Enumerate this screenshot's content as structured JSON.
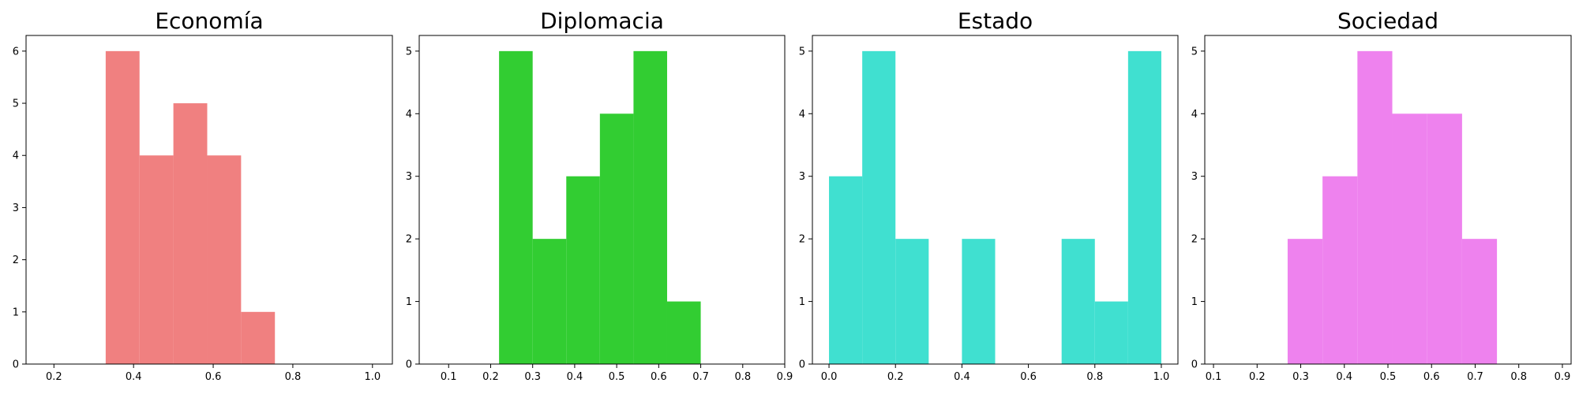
{
  "chart_data": [
    {
      "type": "bar",
      "title": "Economía",
      "color": "#f08080",
      "xlim": [
        0.13,
        1.05
      ],
      "ylim": [
        0,
        6.3
      ],
      "xticks": [
        "0.2",
        "0.4",
        "0.6",
        "0.8",
        "1.0"
      ],
      "yticks": [
        "0",
        "1",
        "2",
        "3",
        "4",
        "5",
        "6"
      ],
      "bins": [
        {
          "x0": 0.33,
          "x1": 0.415,
          "count": 6
        },
        {
          "x0": 0.415,
          "x1": 0.5,
          "count": 4
        },
        {
          "x0": 0.5,
          "x1": 0.585,
          "count": 5
        },
        {
          "x0": 0.585,
          "x1": 0.67,
          "count": 4
        },
        {
          "x0": 0.67,
          "x1": 0.755,
          "count": 1
        }
      ]
    },
    {
      "type": "bar",
      "title": "Diplomacia",
      "color": "#32cd32",
      "xlim": [
        0.03,
        0.9
      ],
      "ylim": [
        0,
        5.25
      ],
      "xticks": [
        "0.1",
        "0.2",
        "0.3",
        "0.4",
        "0.5",
        "0.6",
        "0.7",
        "0.8",
        "0.9"
      ],
      "yticks": [
        "0",
        "1",
        "2",
        "3",
        "4",
        "5"
      ],
      "bins": [
        {
          "x0": 0.22,
          "x1": 0.3,
          "count": 5
        },
        {
          "x0": 0.3,
          "x1": 0.38,
          "count": 2
        },
        {
          "x0": 0.38,
          "x1": 0.46,
          "count": 3
        },
        {
          "x0": 0.46,
          "x1": 0.54,
          "count": 4
        },
        {
          "x0": 0.54,
          "x1": 0.62,
          "count": 5
        },
        {
          "x0": 0.62,
          "x1": 0.7,
          "count": 1
        }
      ]
    },
    {
      "type": "bar",
      "title": "Estado",
      "color": "#40e0d0",
      "xlim": [
        -0.05,
        1.05
      ],
      "ylim": [
        0,
        5.25
      ],
      "xticks": [
        "0.0",
        "0.2",
        "0.4",
        "0.6",
        "0.8",
        "1.0"
      ],
      "yticks": [
        "0",
        "1",
        "2",
        "3",
        "4",
        "5"
      ],
      "bins": [
        {
          "x0": 0.0,
          "x1": 0.1,
          "count": 3
        },
        {
          "x0": 0.1,
          "x1": 0.2,
          "count": 5
        },
        {
          "x0": 0.2,
          "x1": 0.3,
          "count": 2
        },
        {
          "x0": 0.4,
          "x1": 0.5,
          "count": 2
        },
        {
          "x0": 0.7,
          "x1": 0.8,
          "count": 2
        },
        {
          "x0": 0.8,
          "x1": 0.9,
          "count": 1
        },
        {
          "x0": 0.9,
          "x1": 1.0,
          "count": 5
        }
      ]
    },
    {
      "type": "bar",
      "title": "Sociedad",
      "color": "#ee82ee",
      "xlim": [
        0.08,
        0.92
      ],
      "ylim": [
        0,
        5.25
      ],
      "xticks": [
        "0.1",
        "0.2",
        "0.3",
        "0.4",
        "0.5",
        "0.6",
        "0.7",
        "0.8",
        "0.9"
      ],
      "yticks": [
        "0",
        "1",
        "2",
        "3",
        "4",
        "5"
      ],
      "bins": [
        {
          "x0": 0.27,
          "x1": 0.35,
          "count": 2
        },
        {
          "x0": 0.35,
          "x1": 0.43,
          "count": 3
        },
        {
          "x0": 0.43,
          "x1": 0.51,
          "count": 5
        },
        {
          "x0": 0.51,
          "x1": 0.59,
          "count": 4
        },
        {
          "x0": 0.59,
          "x1": 0.67,
          "count": 4
        },
        {
          "x0": 0.67,
          "x1": 0.75,
          "count": 2
        }
      ]
    }
  ]
}
